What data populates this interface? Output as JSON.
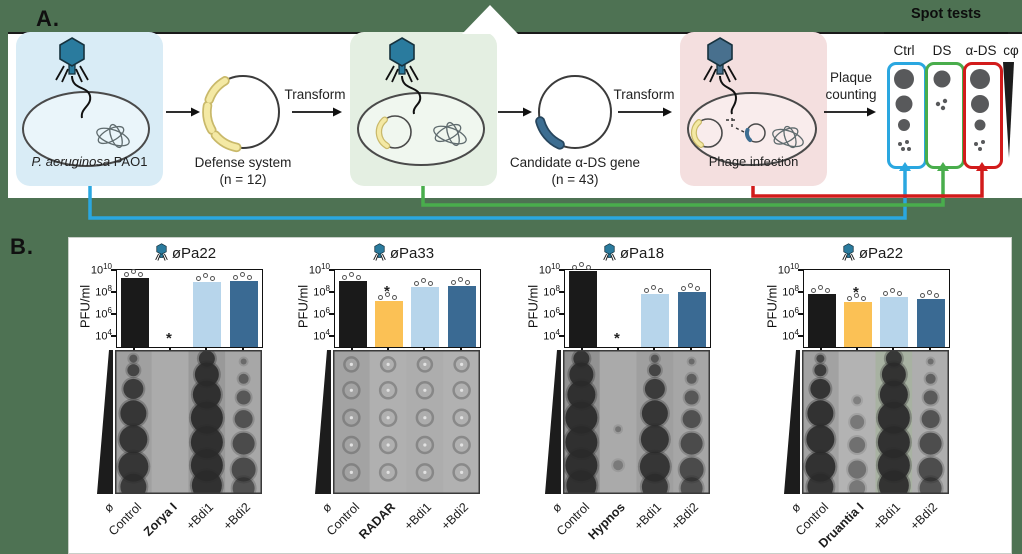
{
  "page": {
    "background_color": "#4e7253",
    "accent_phage_color": "#2a7b9e"
  },
  "panel_a": {
    "label": "A.",
    "host_cell": {
      "name_italic": "P. aeruginosa",
      "name_plain": " PAO1"
    },
    "defense_plasmid": {
      "label": "Defense system",
      "count": "(n = 12)"
    },
    "transform_label_1": "Transform",
    "candidate_plasmid": {
      "label": "Candidate α-DS gene",
      "count": "(n = 43)"
    },
    "transform_label_2": "Transform",
    "phage_infection_label": "Phage infection",
    "plaque_counting_label": "Plaque counting",
    "spot_tests": {
      "title": "Spot tests",
      "columns": [
        {
          "label": "Ctrl",
          "border_color": "#2aa7e0"
        },
        {
          "label": "DS",
          "border_color": "#49ad4c"
        },
        {
          "label": "α-DS",
          "border_color": "#d21b1b"
        }
      ],
      "dilution_label": "cφ"
    }
  },
  "panel_b": {
    "label": "B.",
    "significance_marker": "*"
  },
  "chart_data": [
    {
      "type": "bar",
      "title": "øPa22",
      "ylabel": "PFU/ml",
      "yaxis": {
        "scale": "log",
        "ylim_exponents": [
          3,
          10
        ],
        "tick_exponents": [
          10,
          8,
          6,
          4
        ]
      },
      "categories": [
        "Control",
        "Zorya I",
        "+Bdi1",
        "+Bdi2"
      ],
      "values": [
        2000000000,
        null,
        900000000,
        1100000000
      ],
      "bar_colors": [
        "#1a1a1a",
        "#fbc155",
        "#b7d5eb",
        "#3a6a93"
      ],
      "significance": [
        false,
        true,
        false,
        false
      ],
      "defense_system": "Zorya I",
      "dilution_label": "ø",
      "gel_columns": [
        "stack-large",
        "empty",
        "blob-heavy",
        "stack-medium"
      ]
    },
    {
      "type": "bar",
      "title": "øPa33",
      "ylabel": "PFU/ml",
      "yaxis": {
        "scale": "log",
        "ylim_exponents": [
          3,
          10
        ],
        "tick_exponents": [
          10,
          8,
          6,
          4
        ]
      },
      "categories": [
        "Control",
        "RADAR",
        "+Bdi1",
        "+Bdi2"
      ],
      "values": [
        1000000000,
        15000000,
        300000000,
        320000000
      ],
      "bar_colors": [
        "#1a1a1a",
        "#fbc155",
        "#b7d5eb",
        "#3a6a93"
      ],
      "significance": [
        false,
        true,
        false,
        false
      ],
      "defense_system": "RADAR",
      "dilution_label": "ø",
      "gel_columns": [
        "rings",
        "rings",
        "rings",
        "rings"
      ]
    },
    {
      "type": "bar",
      "title": "øPa18",
      "ylabel": "PFU/ml",
      "yaxis": {
        "scale": "log",
        "ylim_exponents": [
          3,
          10
        ],
        "tick_exponents": [
          10,
          8,
          6,
          4
        ]
      },
      "categories": [
        "Control",
        "Hypnos",
        "+Bdi1",
        "+Bdi2"
      ],
      "values": [
        8000000000,
        null,
        60000000,
        100000000
      ],
      "bar_colors": [
        "#1a1a1a",
        "#fbc155",
        "#b7d5eb",
        "#3a6a93"
      ],
      "significance": [
        false,
        true,
        false,
        false
      ],
      "defense_system": "Hypnos",
      "dilution_label": "ø",
      "gel_columns": [
        "blob-heavy",
        "dot",
        "stack-large",
        "stack-medium"
      ]
    },
    {
      "type": "bar",
      "title": "øPa22",
      "ylabel": "PFU/ml",
      "yaxis": {
        "scale": "log",
        "ylim_exponents": [
          3,
          10
        ],
        "tick_exponents": [
          10,
          8,
          6,
          4
        ]
      },
      "categories": [
        "Control",
        "Druantia I",
        "+Bdi1",
        "+Bdi2"
      ],
      "values": [
        70000000,
        12000000,
        35000000,
        25000000
      ],
      "bar_colors": [
        "#1a1a1a",
        "#fbc155",
        "#b7d5eb",
        "#3a6a93"
      ],
      "significance": [
        false,
        true,
        false,
        false
      ],
      "defense_system": "Druantia I",
      "dilution_label": "ø",
      "gel_columns": [
        "stack-dark",
        "stack-faint",
        "blob-heavy",
        "stack-medium"
      ]
    }
  ]
}
